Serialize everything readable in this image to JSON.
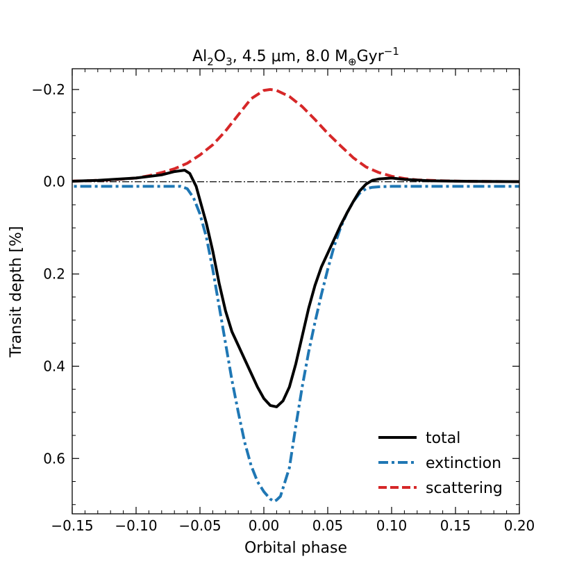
{
  "chart_data": {
    "type": "line",
    "title": {
      "prefix": "Al",
      "sub1": "2",
      "mid": "O",
      "sub2": "3",
      "rest": ", 4.5 μm, 8.0 M",
      "earth_sub": "⊕",
      "unit": "Gyr",
      "exp": "−1"
    },
    "xlabel": "Orbital phase",
    "ylabel": "Transit depth [%]",
    "xlim": [
      -0.15,
      0.2
    ],
    "ylim": [
      0.72,
      -0.245
    ],
    "x_ticks": [
      -0.15,
      -0.1,
      -0.05,
      0.0,
      0.05,
      0.1,
      0.15,
      0.2
    ],
    "x_tick_labels": [
      "−0.15",
      "−0.10",
      "−0.05",
      "0.00",
      "0.05",
      "0.10",
      "0.15",
      "0.20"
    ],
    "y_ticks": [
      -0.2,
      0.0,
      0.2,
      0.4,
      0.6
    ],
    "y_tick_labels": [
      "−0.2",
      "0.0",
      "0.2",
      "0.4",
      "0.6"
    ],
    "reference_line": {
      "y": 0.0,
      "color": "#000000",
      "style": "dashdot"
    },
    "legend": {
      "position": "bottom-right"
    },
    "series": [
      {
        "name": "total",
        "color": "#000000",
        "style": "solid",
        "x": [
          -0.16,
          -0.13,
          -0.1,
          -0.08,
          -0.07,
          -0.062,
          -0.058,
          -0.053,
          -0.05,
          -0.045,
          -0.04,
          -0.035,
          -0.03,
          -0.025,
          -0.02,
          -0.015,
          -0.01,
          -0.005,
          0.0,
          0.005,
          0.01,
          0.015,
          0.02,
          0.025,
          0.03,
          0.035,
          0.04,
          0.045,
          0.05,
          0.055,
          0.06,
          0.065,
          0.07,
          0.075,
          0.08,
          0.085,
          0.09,
          0.1,
          0.11,
          0.13,
          0.16,
          0.21
        ],
        "y": [
          0.0,
          -0.003,
          -0.008,
          -0.015,
          -0.022,
          -0.025,
          -0.018,
          0.01,
          0.04,
          0.09,
          0.15,
          0.22,
          0.28,
          0.325,
          0.355,
          0.385,
          0.415,
          0.445,
          0.47,
          0.485,
          0.488,
          0.475,
          0.445,
          0.395,
          0.335,
          0.275,
          0.225,
          0.185,
          0.155,
          0.125,
          0.095,
          0.068,
          0.043,
          0.02,
          0.005,
          -0.003,
          -0.006,
          -0.008,
          -0.005,
          -0.002,
          -0.001,
          0.0
        ]
      },
      {
        "name": "extinction",
        "color": "#1f77b4",
        "style": "dashdot",
        "x": [
          -0.16,
          -0.07,
          -0.065,
          -0.06,
          -0.055,
          -0.05,
          -0.045,
          -0.04,
          -0.035,
          -0.03,
          -0.025,
          -0.02,
          -0.015,
          -0.01,
          -0.005,
          0.0,
          0.005,
          0.008,
          0.01,
          0.013,
          0.02,
          0.025,
          0.03,
          0.035,
          0.04,
          0.045,
          0.05,
          0.055,
          0.06,
          0.065,
          0.07,
          0.075,
          0.08,
          0.085,
          0.09,
          0.1,
          0.11,
          0.21
        ],
        "y": [
          0.01,
          0.01,
          0.01,
          0.015,
          0.035,
          0.07,
          0.12,
          0.19,
          0.27,
          0.35,
          0.43,
          0.5,
          0.565,
          0.615,
          0.65,
          0.672,
          0.688,
          0.693,
          0.69,
          0.682,
          0.62,
          0.53,
          0.445,
          0.37,
          0.305,
          0.245,
          0.19,
          0.14,
          0.1,
          0.068,
          0.043,
          0.025,
          0.015,
          0.012,
          0.011,
          0.01,
          0.01,
          0.01
        ]
      },
      {
        "name": "scattering",
        "color": "#d62728",
        "style": "dashed",
        "x": [
          -0.16,
          -0.14,
          -0.12,
          -0.1,
          -0.09,
          -0.08,
          -0.07,
          -0.06,
          -0.05,
          -0.04,
          -0.03,
          -0.02,
          -0.01,
          0.0,
          0.005,
          0.01,
          0.02,
          0.03,
          0.04,
          0.05,
          0.06,
          0.07,
          0.08,
          0.09,
          0.1,
          0.11,
          0.12,
          0.14,
          0.16,
          0.18,
          0.21
        ],
        "y": [
          -0.001,
          -0.002,
          -0.004,
          -0.008,
          -0.013,
          -0.02,
          -0.028,
          -0.04,
          -0.058,
          -0.08,
          -0.11,
          -0.145,
          -0.18,
          -0.198,
          -0.2,
          -0.198,
          -0.185,
          -0.163,
          -0.135,
          -0.105,
          -0.078,
          -0.052,
          -0.032,
          -0.02,
          -0.012,
          -0.007,
          -0.004,
          -0.002,
          -0.001,
          -0.0005,
          0.0
        ]
      }
    ]
  }
}
